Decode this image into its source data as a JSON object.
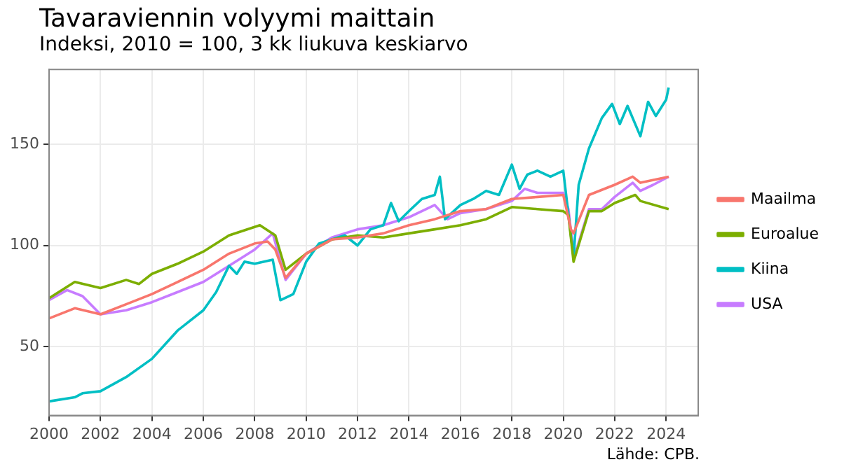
{
  "chart_data": {
    "type": "line",
    "title": "Tavaraviennin volyymi maittain",
    "subtitle": "Indeksi, 2010 = 100, 3 kk liukuva keskiarvo",
    "xlim": [
      2000,
      2025.25
    ],
    "xticks": [
      2000,
      2002,
      2004,
      2006,
      2008,
      2010,
      2012,
      2014,
      2016,
      2018,
      2020,
      2022,
      2024
    ],
    "ylim": [
      16,
      187
    ],
    "yticks": [
      50,
      100,
      150
    ],
    "grid": true,
    "legend": "right",
    "marker": "none",
    "line_style": "solid",
    "annotations": [
      "Lähde: CPB."
    ],
    "series": [
      {
        "name": "Maailma",
        "color": "#f8766d",
        "x": [
          2000,
          2001,
          2002,
          2003,
          2004,
          2005,
          2006,
          2007,
          2008,
          2008.5,
          2008.8,
          2009.2,
          2010,
          2011,
          2012,
          2013,
          2014,
          2015,
          2016,
          2017,
          2018,
          2019,
          2020,
          2020.3,
          2020.4,
          2021,
          2022,
          2022.7,
          2023,
          2024.1
        ],
        "values": [
          64,
          69,
          66,
          71,
          76,
          82,
          88,
          96,
          101,
          102,
          98,
          84,
          96,
          103,
          104,
          106,
          110,
          113,
          117,
          118,
          123,
          124,
          125,
          108,
          106,
          125,
          130,
          134,
          131,
          134
        ]
      },
      {
        "name": "Euroalue",
        "color": "#7cae00",
        "x": [
          2000,
          2001,
          2002,
          2003,
          2003.5,
          2004,
          2005,
          2006,
          2007,
          2008.2,
          2008.8,
          2009.2,
          2010,
          2011,
          2012,
          2013,
          2014,
          2015,
          2016,
          2017,
          2018,
          2019,
          2020,
          2020.2,
          2020.4,
          2021,
          2021.5,
          2022,
          2022.8,
          2023,
          2024.1
        ],
        "values": [
          74,
          82,
          79,
          83,
          81,
          86,
          91,
          97,
          105,
          110,
          105,
          88,
          96,
          103,
          105,
          104,
          106,
          108,
          110,
          113,
          119,
          118,
          117,
          115,
          92,
          117,
          117,
          121,
          125,
          122,
          118
        ]
      },
      {
        "name": "Kiina",
        "color": "#00bfc4",
        "x": [
          2000,
          2001,
          2001.3,
          2002,
          2003,
          2004,
          2005,
          2006,
          2006.5,
          2007,
          2007.3,
          2007.6,
          2008,
          2008.7,
          2009,
          2009.5,
          2010,
          2010.5,
          2011,
          2011.5,
          2012,
          2012.5,
          2013,
          2013.3,
          2013.6,
          2014,
          2014.5,
          2015,
          2015.2,
          2015.4,
          2016,
          2016.5,
          2017,
          2017.5,
          2018,
          2018.3,
          2018.6,
          2019,
          2019.5,
          2020,
          2020.4,
          2020.6,
          2021,
          2021.5,
          2021.9,
          2022.2,
          2022.5,
          2023,
          2023.3,
          2023.6,
          2024,
          2024.1
        ],
        "values": [
          23,
          25,
          27,
          28,
          35,
          44,
          58,
          68,
          77,
          90,
          86,
          92,
          91,
          93,
          73,
          76,
          92,
          101,
          103,
          105,
          100,
          108,
          110,
          121,
          112,
          117,
          123,
          125,
          134,
          113,
          120,
          123,
          127,
          125,
          140,
          128,
          135,
          137,
          134,
          137,
          94,
          130,
          148,
          163,
          170,
          160,
          169,
          154,
          171,
          164,
          172,
          178
        ]
      },
      {
        "name": "USA",
        "color": "#c77cff",
        "x": [
          2000,
          2000.7,
          2001.3,
          2002,
          2003,
          2004,
          2005,
          2006,
          2007,
          2008,
          2008.7,
          2009.2,
          2010,
          2011,
          2012,
          2013,
          2014,
          2015,
          2015.5,
          2016,
          2017,
          2018,
          2018.5,
          2019,
          2020,
          2020.2,
          2020.42,
          2021,
          2021.5,
          2022,
          2022.7,
          2023,
          2023.5,
          2024.1
        ],
        "values": [
          73,
          78,
          75,
          66,
          68,
          72,
          77,
          82,
          90,
          98,
          106,
          83,
          96,
          104,
          108,
          110,
          114,
          120,
          113,
          116,
          118,
          122,
          128,
          126,
          126,
          118,
          94,
          118,
          118,
          124,
          131,
          127,
          130,
          134
        ]
      }
    ]
  }
}
